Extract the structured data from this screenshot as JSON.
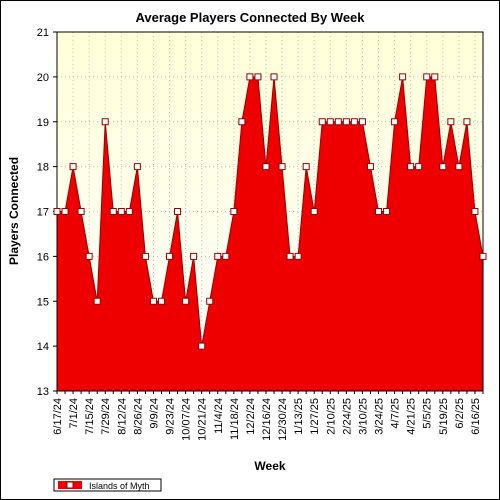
{
  "chart_data": {
    "type": "area",
    "title": "Average Players Connected By Week",
    "xlabel": "Week",
    "ylabel": "Players Connected",
    "ylim": [
      13,
      21
    ],
    "yticks": [
      13,
      14,
      15,
      16,
      17,
      18,
      19,
      20,
      21
    ],
    "x_tick_labels": [
      "6/17/24",
      "7/1/24",
      "7/15/24",
      "7/29/24",
      "8/12/24",
      "8/26/24",
      "9/9/24",
      "9/23/24",
      "10/07/24",
      "10/21/24",
      "11/4/24",
      "11/18/24",
      "12/2/24",
      "12/16/24",
      "12/30/24",
      "1/13/25",
      "1/27/25",
      "2/10/25",
      "2/24/25",
      "3/10/25",
      "3/24/25",
      "4/7/25",
      "4/21/25",
      "5/5/25",
      "5/19/25",
      "6/2/25",
      "6/16/25"
    ],
    "grid": true,
    "legend_position": "bottom-left",
    "colors": {
      "fill": "#ee0000",
      "line": "#990000",
      "marker_fill": "#ffffff",
      "plot_background_top": "#ffffd8",
      "plot_background_bottom": "#ffffff",
      "grid": "#c0c0c0"
    },
    "series": [
      {
        "name": "Islands of Myth",
        "values": [
          17,
          17,
          18,
          17,
          16,
          15,
          19,
          17,
          17,
          17,
          18,
          16,
          15,
          15,
          16,
          17,
          15,
          16,
          14,
          15,
          16,
          16,
          17,
          19,
          20,
          20,
          18,
          20,
          18,
          16,
          16,
          18,
          17,
          19,
          19,
          19,
          19,
          19,
          19,
          18,
          17,
          17,
          19,
          20,
          18,
          18,
          20,
          20,
          18,
          19,
          18,
          19,
          17,
          16
        ]
      }
    ]
  }
}
